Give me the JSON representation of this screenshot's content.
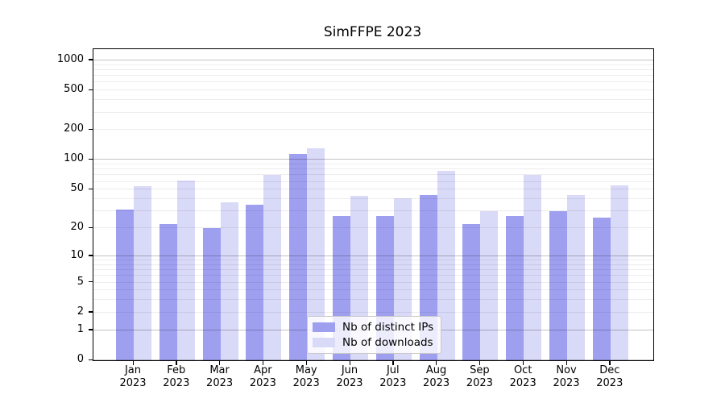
{
  "title": "SimFFPE 2023",
  "chart_data": {
    "type": "bar",
    "title": "SimFFPE 2023",
    "categories": [
      "Jan 2023",
      "Feb 2023",
      "Mar 2023",
      "Apr 2023",
      "May 2023",
      "Jun 2023",
      "Jul 2023",
      "Aug 2023",
      "Sep 2023",
      "Oct 2023",
      "Nov 2023",
      "Dec 2023"
    ],
    "month_labels": [
      "Jan",
      "Feb",
      "Mar",
      "Apr",
      "May",
      "Jun",
      "Jul",
      "Aug",
      "Sep",
      "Oct",
      "Nov",
      "Dec"
    ],
    "year_label": "2023",
    "series": [
      {
        "name": "Nb of distinct IPs",
        "color": "#9f9ff0",
        "values": [
          31,
          22,
          20,
          35,
          116,
          27,
          27,
          44,
          22,
          27,
          30,
          26
        ]
      },
      {
        "name": "Nb of downloads",
        "color": "#d9d9f8",
        "values": [
          54,
          62,
          37,
          70,
          131,
          43,
          41,
          77,
          30,
          71,
          44,
          55
        ]
      }
    ],
    "xlabel": "",
    "ylabel": "",
    "yscale": "log10(1+v)",
    "ylim": [
      0,
      1270
    ],
    "y_tick_values": [
      1000,
      500,
      200,
      100,
      50,
      20,
      10,
      5,
      2,
      1,
      0
    ],
    "y_tick_labels": [
      "1000",
      "500",
      "200",
      "100",
      "50",
      "20",
      "10",
      "5",
      "2",
      "1",
      "0"
    ],
    "y_major_gridlines": [
      0,
      1,
      10,
      100,
      1000
    ],
    "y_minor_gridlines": [
      2,
      3,
      4,
      5,
      6,
      7,
      8,
      9,
      20,
      30,
      40,
      50,
      60,
      70,
      80,
      90,
      200,
      300,
      400,
      500,
      600,
      700,
      800,
      900
    ],
    "grid": true,
    "legend_position": "lower center inside axes",
    "grid_major_color": "#c2c2c2",
    "grid_minor_color": "#ededed",
    "axis_color": "#000000",
    "background_color": "#ffffff"
  }
}
